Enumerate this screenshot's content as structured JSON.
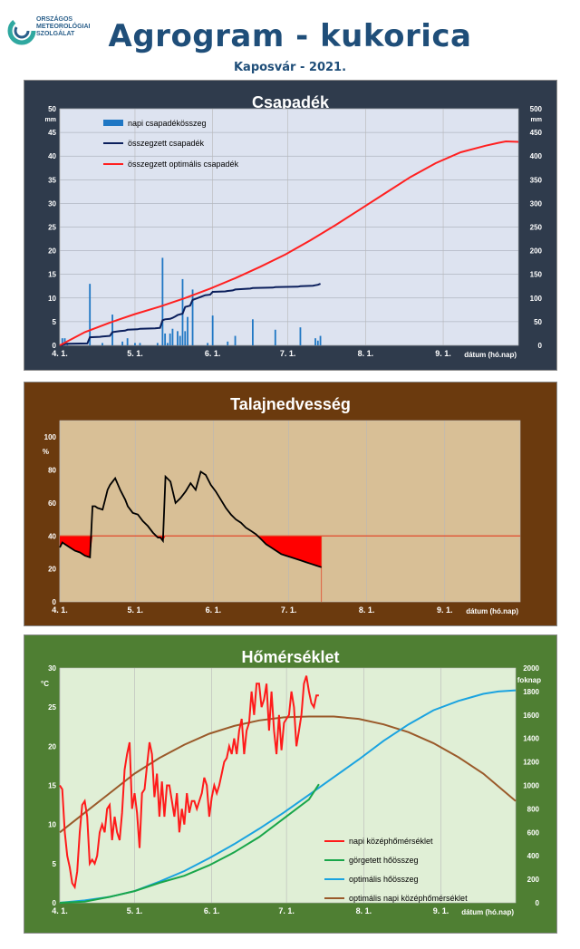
{
  "header": {
    "org_line1": "ORSZÁGOS",
    "org_line2": "METEOROLÓGIAI",
    "org_line3": "SZOLGÁLAT",
    "title": "Agrogram - kukorica",
    "subtitle": "Kaposvár - 2021."
  },
  "colors": {
    "panel1_bg": "#2f3b4c",
    "panel1_plot": "#dde3f0",
    "panel2_bg": "#6b3a0e",
    "panel2_plot": "#d8bf96",
    "panel3_bg": "#4f7f33",
    "panel3_plot": "#e0efd6",
    "daily_precip": "#1f77c4",
    "cum_precip": "#0b1f5c",
    "opt_precip": "#ff2020",
    "soil_line": "#000000",
    "soil_deficit": "#ff0000",
    "soil_threshold": "#e24a2a",
    "temp_daily": "#ff1a1a",
    "temp_rolling": "#19a64a",
    "temp_opt_sum": "#1aa3e0",
    "temp_opt_daily": "#9a5a2a"
  },
  "chart_data": [
    {
      "type": "bar",
      "title": "Csapadék",
      "ylabel": "mm",
      "y2label": "mm",
      "xlabel": "dátum (hó.nap)",
      "ylim": [
        0,
        50
      ],
      "y2lim": [
        0,
        500
      ],
      "yticks": [
        0,
        5,
        10,
        15,
        20,
        25,
        30,
        35,
        40,
        45,
        50
      ],
      "y2ticks": [
        0,
        50,
        100,
        150,
        200,
        250,
        300,
        350,
        400,
        450,
        500
      ],
      "xlim": [
        0,
        183
      ],
      "xtick_days": [
        0,
        30,
        61,
        91,
        122,
        153
      ],
      "xtick_labels": [
        "4. 1.",
        "5. 1.",
        "6. 1.",
        "7. 1.",
        "8. 1.",
        "9. 1."
      ],
      "legend": {
        "position": "top-left",
        "entries": [
          "napi csapadékösszeg",
          "összegzett csapadék",
          "összegzett optimális csapadék"
        ]
      },
      "series": [
        {
          "name": "napi csapadékösszeg",
          "kind": "bar",
          "axis": "left",
          "x": [
            1,
            2,
            3,
            12,
            17,
            21,
            25,
            27,
            30,
            32,
            39,
            41,
            42,
            43,
            44,
            45,
            47,
            48,
            49,
            50,
            51,
            53,
            59,
            61,
            67,
            70,
            77,
            86,
            96,
            102,
            103,
            104
          ],
          "values": [
            1.5,
            1.5,
            0.5,
            13,
            0.5,
            6.5,
            0.8,
            1.5,
            0.5,
            0.5,
            0.5,
            18.5,
            2.5,
            0.5,
            2.5,
            3.5,
            3,
            2,
            14,
            3,
            6,
            11.8,
            0.5,
            6.3,
            0.8,
            2,
            5.5,
            3.3,
            3.8,
            1.5,
            1,
            2
          ]
        },
        {
          "name": "összegzett csapadék",
          "kind": "line",
          "axis": "right",
          "x": [
            0,
            1,
            2,
            3,
            11,
            12,
            16,
            17,
            20,
            21,
            24,
            26,
            27,
            29,
            31,
            32,
            38,
            40,
            41,
            42,
            44,
            45,
            46,
            47,
            49,
            50,
            52,
            53,
            58,
            60,
            61,
            66,
            67,
            69,
            70,
            76,
            77,
            85,
            86,
            95,
            96,
            101,
            102,
            103,
            104
          ],
          "values": [
            0,
            1,
            3,
            3.5,
            4,
            17,
            18,
            18.5,
            20,
            28,
            30,
            31,
            33,
            33.5,
            34,
            35,
            36,
            37,
            53,
            55,
            56,
            58,
            61,
            64,
            67,
            81,
            84,
            96,
            106,
            107,
            113,
            114,
            115,
            116,
            118,
            120,
            121,
            122,
            123,
            124,
            125,
            126,
            127,
            128,
            130
          ]
        },
        {
          "name": "összegzett optimális csapadék",
          "kind": "line",
          "axis": "right",
          "x": [
            0,
            10,
            20,
            30,
            40,
            50,
            60,
            70,
            80,
            90,
            100,
            110,
            120,
            130,
            140,
            150,
            160,
            170,
            175,
            178,
            183
          ],
          "values": [
            0,
            28,
            48,
            66,
            82,
            100,
            120,
            142,
            166,
            192,
            222,
            254,
            288,
            322,
            356,
            385,
            408,
            422,
            428,
            431,
            430
          ]
        }
      ]
    },
    {
      "type": "line",
      "title": "Talajnedvesség",
      "ylabel": "%",
      "xlabel": "dátum (hó.nap)",
      "ylim": [
        0,
        110
      ],
      "yticks": [
        0,
        20,
        40,
        60,
        80,
        100
      ],
      "xlim": [
        0,
        183
      ],
      "xtick_days": [
        0,
        30,
        61,
        91,
        122,
        153
      ],
      "xtick_labels": [
        "4. 1.",
        "5. 1.",
        "6. 1.",
        "7. 1.",
        "8. 1.",
        "9. 1."
      ],
      "threshold": 40,
      "series": [
        {
          "name": "talajnedvesség",
          "x": [
            0,
            1,
            2,
            4,
            6,
            8,
            10,
            12,
            13,
            14,
            15,
            17,
            18,
            19,
            20,
            22,
            24,
            26,
            27,
            29,
            31,
            33,
            35,
            37,
            39,
            40,
            41,
            42,
            44,
            46,
            48,
            50,
            52,
            54,
            56,
            58,
            60,
            62,
            64,
            66,
            68,
            70,
            72,
            74,
            76,
            78,
            80,
            82,
            84,
            86,
            88,
            90,
            92,
            94,
            96,
            98,
            100,
            102,
            104
          ],
          "values": [
            33,
            36,
            35,
            33,
            31,
            30,
            28,
            27,
            58,
            58,
            57,
            56,
            62,
            68,
            71,
            75,
            68,
            62,
            58,
            54,
            53,
            49,
            46,
            42,
            39,
            39,
            37,
            76,
            73,
            60,
            63,
            67,
            72,
            68,
            79,
            77,
            71,
            67,
            62,
            57,
            53,
            50,
            48,
            45,
            43,
            41,
            38,
            35,
            33,
            31,
            29,
            28,
            27,
            26,
            25,
            24,
            23,
            22,
            21
          ]
        }
      ]
    },
    {
      "type": "line",
      "title": "Hőmérséklet",
      "ylabel": "°C",
      "y2label": "foknap",
      "xlabel": "dátum (hó.nap)",
      "ylim": [
        0,
        30
      ],
      "y2lim": [
        0,
        2000
      ],
      "yticks": [
        0,
        5,
        10,
        15,
        20,
        25,
        30
      ],
      "y2ticks": [
        0,
        200,
        400,
        600,
        800,
        1000,
        1200,
        1400,
        1600,
        1800,
        2000
      ],
      "xlim": [
        0,
        183
      ],
      "xtick_days": [
        0,
        30,
        61,
        91,
        122,
        153
      ],
      "xtick_labels": [
        "4. 1.",
        "5. 1.",
        "6. 1.",
        "7. 1.",
        "8. 1.",
        "9. 1."
      ],
      "legend": {
        "position": "bottom-right",
        "entries": [
          "napi középhőmérséklet",
          "görgetett hőösszeg",
          "optimális hőösszeg",
          "optimális napi középhőmérséklet"
        ]
      },
      "series": [
        {
          "name": "napi középhőmérséklet",
          "axis": "left",
          "x": [
            0,
            1,
            2,
            3,
            4,
            5,
            6,
            7,
            8,
            9,
            10,
            11,
            12,
            13,
            14,
            15,
            16,
            17,
            18,
            19,
            20,
            21,
            22,
            23,
            24,
            25,
            26,
            27,
            28,
            29,
            30,
            31,
            32,
            33,
            34,
            35,
            36,
            37,
            38,
            39,
            40,
            41,
            42,
            43,
            44,
            45,
            46,
            47,
            48,
            49,
            50,
            51,
            52,
            53,
            54,
            55,
            56,
            57,
            58,
            59,
            60,
            61,
            62,
            63,
            64,
            65,
            66,
            67,
            68,
            69,
            70,
            71,
            72,
            73,
            74,
            75,
            76,
            77,
            78,
            79,
            80,
            81,
            82,
            83,
            84,
            85,
            86,
            87,
            88,
            89,
            90,
            91,
            92,
            93,
            94,
            95,
            96,
            97,
            98,
            99,
            100,
            101,
            102,
            103,
            104
          ],
          "values": [
            15,
            14.5,
            9,
            6,
            4.5,
            2.5,
            2,
            4,
            9,
            12.5,
            13,
            11,
            5,
            5.5,
            5,
            6,
            9,
            10,
            9,
            12,
            12.5,
            8,
            11,
            9,
            8,
            11.5,
            17,
            19,
            20.5,
            12,
            14,
            11.5,
            7,
            14,
            14.5,
            17.5,
            20.5,
            19,
            13.5,
            16.5,
            11,
            15.5,
            11,
            15,
            15,
            13,
            11,
            14,
            9,
            12,
            10,
            14,
            11.5,
            13,
            13,
            12,
            13,
            14,
            16,
            15,
            11,
            13.5,
            15,
            14,
            15,
            16.5,
            18,
            18.5,
            20,
            19,
            21,
            19,
            22,
            23.5,
            19,
            22,
            23,
            27,
            24,
            28,
            28,
            25,
            26,
            28,
            22,
            27,
            22,
            19,
            24,
            19.5,
            23,
            23.5,
            24,
            27,
            25,
            20,
            22,
            24,
            28,
            29,
            27,
            25.5,
            25,
            26.5,
            26.5
          ]
        },
        {
          "name": "görgetett hőösszeg",
          "axis": "right",
          "x": [
            0,
            10,
            20,
            30,
            40,
            50,
            60,
            70,
            80,
            90,
            100,
            104
          ],
          "values": [
            0,
            10,
            50,
            100,
            170,
            230,
            320,
            430,
            560,
            720,
            880,
            1010
          ]
        },
        {
          "name": "optimális hőösszeg",
          "axis": "right",
          "x": [
            0,
            10,
            20,
            30,
            40,
            50,
            60,
            70,
            80,
            90,
            100,
            110,
            120,
            130,
            140,
            150,
            160,
            170,
            176,
            183
          ],
          "values": [
            0,
            20,
            50,
            100,
            180,
            270,
            380,
            500,
            630,
            770,
            920,
            1070,
            1220,
            1380,
            1520,
            1640,
            1720,
            1780,
            1800,
            1810
          ]
        },
        {
          "name": "optimális napi középhőmérséklet",
          "axis": "left",
          "x": [
            0,
            10,
            20,
            30,
            40,
            50,
            60,
            70,
            80,
            90,
            100,
            110,
            120,
            130,
            140,
            150,
            160,
            170,
            183
          ],
          "values": [
            9,
            11.5,
            14,
            16.5,
            18.5,
            20.2,
            21.6,
            22.6,
            23.3,
            23.7,
            23.8,
            23.8,
            23.5,
            22.8,
            21.8,
            20.4,
            18.6,
            16.5,
            13
          ]
        }
      ]
    }
  ]
}
